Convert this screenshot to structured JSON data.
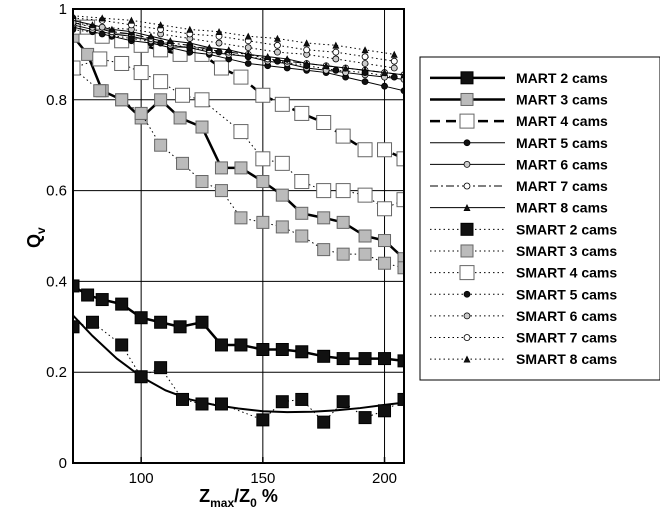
{
  "chart_data": {
    "type": "scatter",
    "xlabel": {
      "main": "Z",
      "sub1": "max",
      "slash": "/Z",
      "sub2": "0",
      "tail": " %"
    },
    "ylabel": {
      "main": "Q",
      "sub": "v"
    },
    "xlim": [
      72,
      208
    ],
    "ylim": [
      0,
      1
    ],
    "xticks": [
      100,
      150,
      200
    ],
    "yticks": [
      0,
      0.2,
      0.4,
      0.6,
      0.8,
      1
    ],
    "ytick_labels": [
      "0",
      "0.2",
      "0.4",
      "0.6",
      "0.8",
      "1"
    ],
    "grid": true,
    "legend_position": "right",
    "series": [
      {
        "name": "MART 2 cams",
        "line": "solid",
        "lineWidth": 2.5,
        "marker": "square",
        "markerSize": 12,
        "fill": "#111111",
        "x": [
          72,
          78,
          84,
          92,
          100,
          108,
          116,
          125,
          133,
          141,
          150,
          158,
          166,
          175,
          183,
          192,
          200,
          208
        ],
        "y": [
          0.39,
          0.37,
          0.36,
          0.35,
          0.32,
          0.31,
          0.3,
          0.31,
          0.26,
          0.26,
          0.25,
          0.25,
          0.245,
          0.235,
          0.23,
          0.23,
          0.23,
          0.225
        ]
      },
      {
        "name": "MART 3 cams",
        "line": "solid",
        "lineWidth": 2.5,
        "marker": "square",
        "markerSize": 12,
        "fill": "#bbbbbb",
        "x": [
          72,
          78,
          84,
          92,
          100,
          108,
          116,
          125,
          133,
          141,
          150,
          158,
          166,
          175,
          183,
          192,
          200,
          208
        ],
        "y": [
          0.94,
          0.9,
          0.82,
          0.8,
          0.76,
          0.8,
          0.76,
          0.74,
          0.65,
          0.65,
          0.62,
          0.59,
          0.55,
          0.54,
          0.53,
          0.5,
          0.49,
          0.45
        ]
      },
      {
        "name": "MART 4 cams",
        "line": "dashed",
        "lineWidth": 2.5,
        "marker": "square",
        "markerSize": 14,
        "fill": "#ffffff",
        "x": [
          72,
          78,
          84,
          92,
          100,
          108,
          116,
          125,
          133,
          141,
          150,
          158,
          166,
          175,
          183,
          192,
          200,
          208
        ],
        "y": [
          0.96,
          0.96,
          0.94,
          0.93,
          0.92,
          0.91,
          0.9,
          0.9,
          0.87,
          0.85,
          0.81,
          0.79,
          0.77,
          0.75,
          0.72,
          0.69,
          0.69,
          0.67
        ]
      },
      {
        "name": "MART 5 cams",
        "line": "solid",
        "lineWidth": 1,
        "marker": "circle",
        "markerSize": 6,
        "fill": "#111111",
        "x": [
          72,
          80,
          88,
          96,
          104,
          112,
          120,
          128,
          136,
          144,
          152,
          160,
          168,
          176,
          184,
          192,
          200,
          208
        ],
        "y": [
          0.96,
          0.95,
          0.94,
          0.93,
          0.925,
          0.915,
          0.905,
          0.9,
          0.89,
          0.88,
          0.875,
          0.87,
          0.865,
          0.86,
          0.85,
          0.84,
          0.83,
          0.82
        ]
      },
      {
        "name": "MART 6 cams",
        "line": "solid",
        "lineWidth": 1,
        "marker": "circle",
        "markerSize": 6,
        "fill": "#cccccc",
        "x": [
          72,
          80,
          88,
          96,
          104,
          112,
          120,
          128,
          136,
          144,
          152,
          160,
          168,
          176,
          184,
          192,
          200,
          208
        ],
        "y": [
          0.965,
          0.955,
          0.945,
          0.94,
          0.93,
          0.92,
          0.915,
          0.905,
          0.9,
          0.895,
          0.885,
          0.88,
          0.87,
          0.865,
          0.86,
          0.855,
          0.85,
          0.845
        ]
      },
      {
        "name": "MART 7 cams",
        "line": "dashdot",
        "lineWidth": 1,
        "marker": "circle",
        "markerSize": 6,
        "fill": "#ffffff",
        "x": [
          72,
          80,
          88,
          96,
          104,
          112,
          120,
          128,
          136,
          144,
          152,
          160,
          168,
          176,
          184,
          192,
          200,
          208
        ],
        "y": [
          0.97,
          0.96,
          0.95,
          0.945,
          0.935,
          0.925,
          0.92,
          0.91,
          0.905,
          0.9,
          0.89,
          0.885,
          0.88,
          0.875,
          0.87,
          0.865,
          0.86,
          0.855
        ]
      },
      {
        "name": "MART 8 cams",
        "line": "solid",
        "lineWidth": 1,
        "marker": "triangle",
        "markerSize": 6,
        "fill": "#111111",
        "x": [
          72,
          80,
          88,
          96,
          104,
          112,
          120,
          128,
          136,
          144,
          152,
          160,
          168,
          176,
          184,
          192,
          200,
          208
        ],
        "y": [
          0.975,
          0.965,
          0.955,
          0.95,
          0.94,
          0.93,
          0.925,
          0.915,
          0.91,
          0.9,
          0.895,
          0.89,
          0.88,
          0.875,
          0.87,
          0.865,
          0.86,
          0.855
        ]
      },
      {
        "name": "SMART 2 cams",
        "line": "dotted",
        "lineWidth": 1,
        "marker": "square",
        "markerSize": 12,
        "fill": "#111111",
        "x": [
          72,
          80,
          92,
          100,
          108,
          117,
          125,
          133,
          150,
          158,
          166,
          175,
          183,
          192,
          200,
          208
        ],
        "y": [
          0.3,
          0.31,
          0.26,
          0.19,
          0.21,
          0.14,
          0.13,
          0.13,
          0.095,
          0.135,
          0.14,
          0.09,
          0.135,
          0.1,
          0.115,
          0.14
        ],
        "fit": {
          "line": "solid",
          "lineWidth": 2,
          "x": [
            72,
            80,
            90,
            100,
            110,
            120,
            130,
            140,
            150,
            160,
            170,
            180,
            190,
            200,
            208
          ],
          "y": [
            0.325,
            0.28,
            0.23,
            0.19,
            0.16,
            0.14,
            0.128,
            0.12,
            0.114,
            0.112,
            0.113,
            0.116,
            0.121,
            0.128,
            0.133
          ]
        }
      },
      {
        "name": "SMART 3 cams",
        "line": "dotted",
        "lineWidth": 1,
        "marker": "square",
        "markerSize": 12,
        "fill": "#bbbbbb",
        "x": [
          72,
          83,
          92,
          100,
          108,
          117,
          125,
          133,
          141,
          150,
          158,
          166,
          175,
          183,
          192,
          200,
          208
        ],
        "y": [
          0.87,
          0.82,
          0.8,
          0.77,
          0.7,
          0.66,
          0.62,
          0.6,
          0.54,
          0.53,
          0.52,
          0.5,
          0.47,
          0.46,
          0.46,
          0.44,
          0.43
        ]
      },
      {
        "name": "SMART 4 cams",
        "line": "dotted",
        "lineWidth": 1,
        "marker": "square",
        "markerSize": 14,
        "fill": "#ffffff",
        "x": [
          72,
          83,
          92,
          100,
          108,
          117,
          125,
          141,
          150,
          158,
          166,
          175,
          183,
          192,
          200,
          208
        ],
        "y": [
          0.87,
          0.89,
          0.88,
          0.86,
          0.84,
          0.81,
          0.8,
          0.73,
          0.67,
          0.66,
          0.62,
          0.6,
          0.6,
          0.59,
          0.56,
          0.58
        ]
      },
      {
        "name": "SMART 5 cams",
        "line": "dotted",
        "lineWidth": 1,
        "marker": "circle",
        "markerSize": 6,
        "fill": "#111111",
        "x": [
          72,
          84,
          96,
          108,
          120,
          132,
          144,
          156,
          168,
          180,
          192,
          204
        ],
        "y": [
          0.955,
          0.945,
          0.935,
          0.925,
          0.915,
          0.905,
          0.895,
          0.885,
          0.875,
          0.865,
          0.86,
          0.85
        ]
      },
      {
        "name": "SMART 6 cams",
        "line": "dotted",
        "lineWidth": 1,
        "marker": "circle",
        "markerSize": 6,
        "fill": "#cccccc",
        "x": [
          72,
          84,
          96,
          108,
          120,
          132,
          144,
          156,
          168,
          180,
          192,
          204
        ],
        "y": [
          0.97,
          0.96,
          0.955,
          0.945,
          0.935,
          0.925,
          0.915,
          0.905,
          0.9,
          0.89,
          0.88,
          0.87
        ]
      },
      {
        "name": "SMART 7 cams",
        "line": "dotted",
        "lineWidth": 1,
        "marker": "circle",
        "markerSize": 6,
        "fill": "#ffffff",
        "x": [
          72,
          84,
          96,
          108,
          120,
          132,
          144,
          156,
          168,
          180,
          192,
          204
        ],
        "y": [
          0.98,
          0.975,
          0.965,
          0.955,
          0.945,
          0.94,
          0.93,
          0.92,
          0.91,
          0.905,
          0.895,
          0.885
        ]
      },
      {
        "name": "SMART 8 cams",
        "line": "dotted",
        "lineWidth": 1,
        "marker": "triangle",
        "markerSize": 6,
        "fill": "#111111",
        "x": [
          72,
          84,
          96,
          108,
          120,
          132,
          144,
          156,
          168,
          180,
          192,
          204
        ],
        "y": [
          0.985,
          0.98,
          0.975,
          0.965,
          0.955,
          0.95,
          0.94,
          0.935,
          0.925,
          0.92,
          0.91,
          0.9
        ]
      }
    ]
  }
}
